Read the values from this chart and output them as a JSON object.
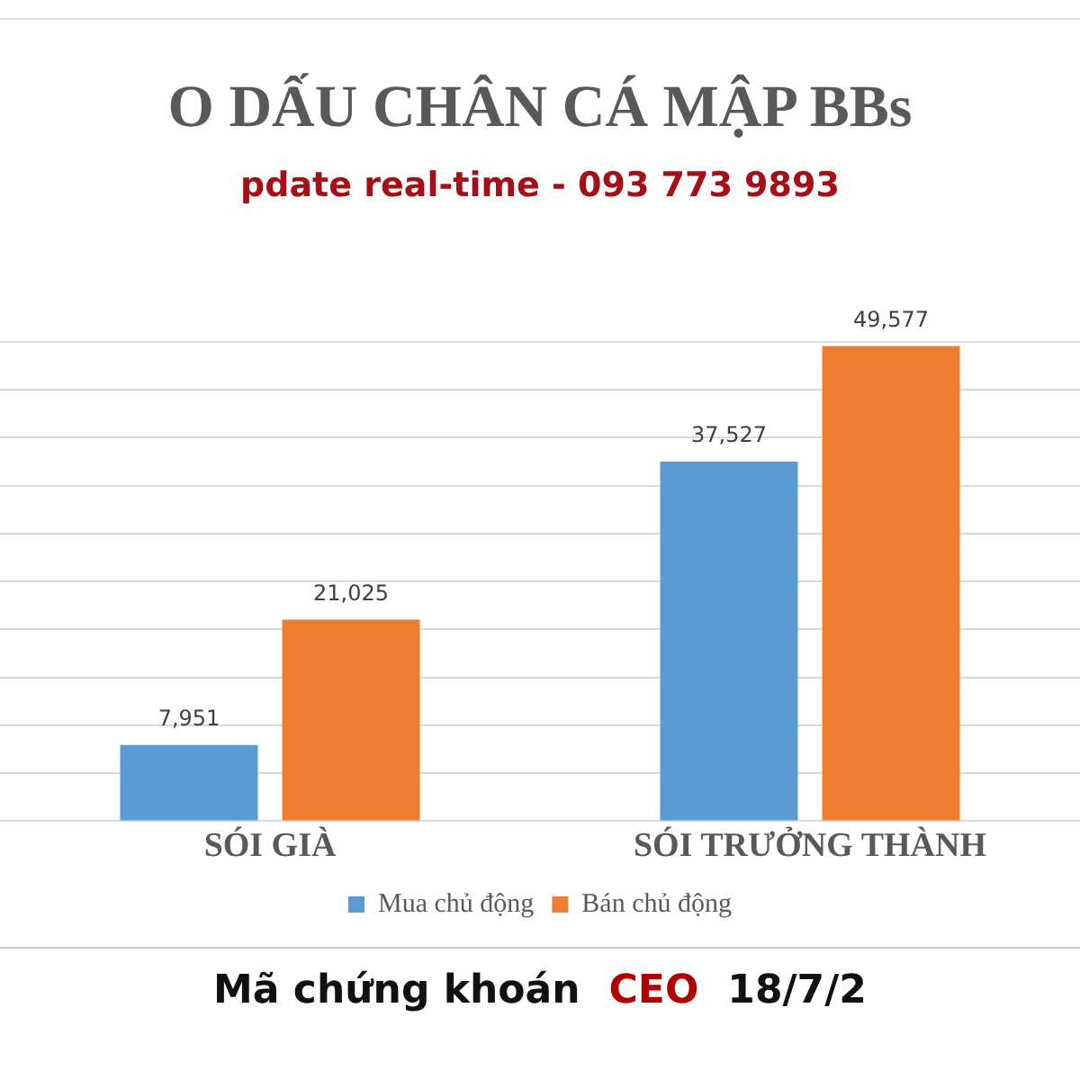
{
  "chart_data": {
    "type": "bar",
    "title": "O DẤU CHÂN CÁ MẬP BBs",
    "subtitle": "pdate real-time - 093 773 9893",
    "categories": [
      "SÓI GIÀ",
      "SÓI TRƯỞNG THÀNH"
    ],
    "series": [
      {
        "name": "Mua chủ động",
        "color": "#5b9bd5",
        "values": [
          7951,
          37527
        ],
        "value_labels": [
          "7,951",
          "37,527"
        ]
      },
      {
        "name": "Bán chủ động",
        "color": "#ed7d31",
        "values": [
          21025,
          49577
        ],
        "value_labels": [
          "21,025",
          "49,577"
        ]
      }
    ],
    "tick_labels": "x",
    "grid": "y",
    "legend": "bottom",
    "annotations": [
      "Mã chứng khoán",
      "CEO",
      "18/7/2"
    ]
  }
}
